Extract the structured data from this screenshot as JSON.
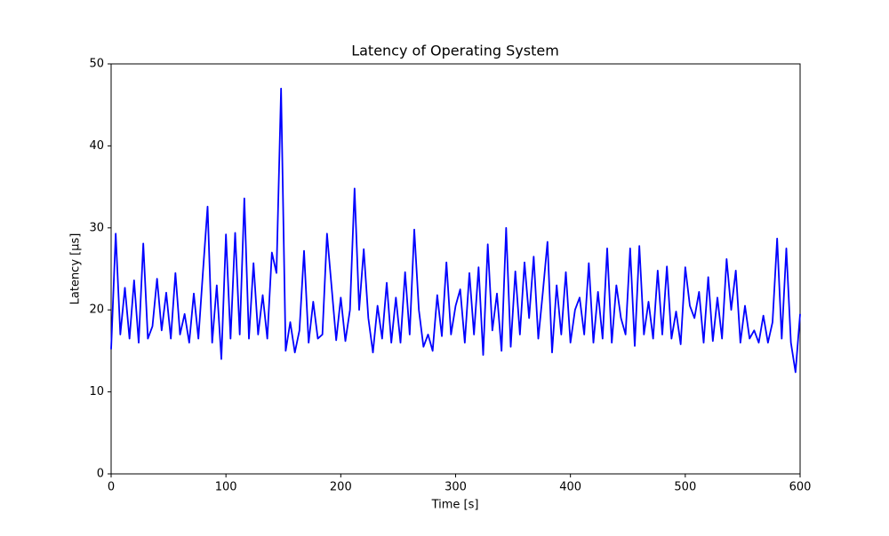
{
  "chart_data": {
    "type": "line",
    "title": "Latency of Operating System",
    "xlabel": "Time [s]",
    "ylabel": "Latency [µs]",
    "x": [
      0,
      4,
      8,
      12,
      16,
      20,
      24,
      28,
      32,
      36,
      40,
      44,
      48,
      52,
      56,
      60,
      64,
      68,
      72,
      76,
      80,
      84,
      88,
      92,
      96,
      100,
      104,
      108,
      112,
      116,
      120,
      124,
      128,
      132,
      136,
      140,
      144,
      148,
      152,
      156,
      160,
      164,
      168,
      172,
      176,
      180,
      184,
      188,
      192,
      196,
      200,
      204,
      208,
      212,
      216,
      220,
      224,
      228,
      232,
      236,
      240,
      244,
      248,
      252,
      256,
      260,
      264,
      268,
      272,
      276,
      280,
      284,
      288,
      292,
      296,
      300,
      304,
      308,
      312,
      316,
      320,
      324,
      328,
      332,
      336,
      340,
      344,
      348,
      352,
      356,
      360,
      364,
      368,
      372,
      376,
      380,
      384,
      388,
      392,
      396,
      400,
      404,
      408,
      412,
      416,
      420,
      424,
      428,
      432,
      436,
      440,
      444,
      448,
      452,
      456,
      460,
      464,
      468,
      472,
      476,
      480,
      484,
      488,
      492,
      496,
      500,
      504,
      508,
      512,
      516,
      520,
      524,
      528,
      532,
      536,
      540,
      544,
      548,
      552,
      556,
      560,
      564,
      568,
      572,
      576,
      580,
      584,
      588,
      592,
      596,
      600
    ],
    "series": [
      {
        "name": "Latency",
        "color": "#0000ff",
        "values": [
          15.2,
          29.3,
          17,
          22.7,
          16.5,
          23.6,
          16,
          28.1,
          16.5,
          18,
          23.8,
          17.5,
          22.1,
          16.5,
          24.5,
          17,
          19.5,
          16,
          22,
          16.5,
          24.7,
          32.6,
          16,
          23,
          14,
          29.2,
          16.5,
          29.4,
          17,
          33.6,
          16.5,
          25.7,
          17,
          21.8,
          16.5,
          27,
          24.5,
          47,
          15,
          18.5,
          14.8,
          17.5,
          27.2,
          16,
          21,
          16.5,
          17,
          29.3,
          22.8,
          16.3,
          21.5,
          16.2,
          20,
          34.8,
          20,
          27.4,
          19,
          14.8,
          20.5,
          16.5,
          23.3,
          16,
          21.5,
          16,
          24.6,
          17,
          29.8,
          20,
          15.5,
          17,
          15,
          21.8,
          16.8,
          25.8,
          17,
          20.5,
          22.5,
          16,
          24.5,
          17,
          25.2,
          14.5,
          28,
          17.5,
          22,
          15,
          30,
          15.5,
          24.7,
          17,
          25.8,
          19,
          26.5,
          16.5,
          22.2,
          28.3,
          14.8,
          23,
          17,
          24.6,
          16,
          20,
          21.5,
          17,
          25.7,
          16,
          22.2,
          16.5,
          27.5,
          16,
          23,
          19,
          17,
          27.5,
          15.6,
          27.8,
          17,
          21,
          16.5,
          24.8,
          17,
          25.3,
          16.5,
          19.8,
          15.8,
          25.2,
          20.5,
          19,
          22.2,
          16,
          24,
          16.2,
          21.5,
          16.5,
          26.2,
          20,
          24.8,
          16,
          20.5,
          16.5,
          17.5,
          16,
          19.3,
          16,
          18.5,
          28.7,
          16.5,
          27.5,
          16,
          12.4,
          19.5
        ]
      }
    ],
    "xlim": [
      0,
      600
    ],
    "xticks": [
      0,
      100,
      200,
      300,
      400,
      500,
      600
    ],
    "ylim": [
      0,
      50
    ],
    "yticks": [
      0,
      10,
      20,
      30,
      40,
      50
    ]
  }
}
